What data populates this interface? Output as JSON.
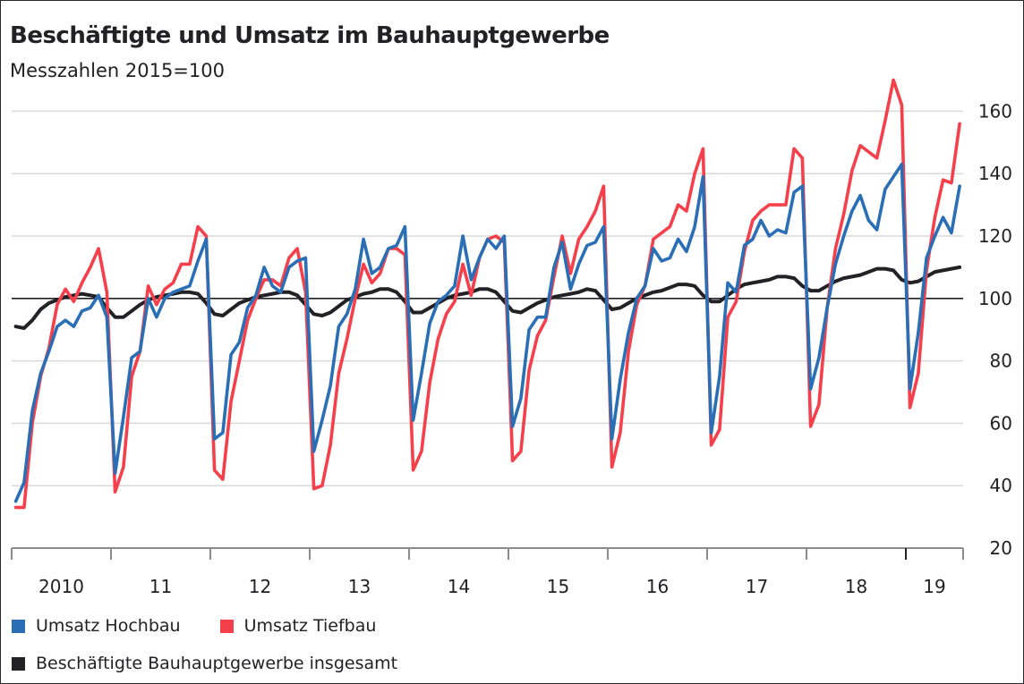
{
  "chart_data": {
    "type": "line",
    "title": "Beschäftigte und Umsatz im Bauhauptgewerbe",
    "subtitle": "Messzahlen 2015=100",
    "xlabel": "",
    "ylabel": "",
    "frequency": "monthly",
    "x_start": "2010-01",
    "x_end": "2019-07",
    "x_tick_labels": [
      "2010",
      "11",
      "12",
      "13",
      "14",
      "15",
      "16",
      "17",
      "18",
      "19"
    ],
    "y_ticks": [
      20,
      40,
      60,
      80,
      100,
      120,
      140,
      160
    ],
    "ylim": [
      20,
      170
    ],
    "reference_line": 100,
    "grid": true,
    "y_axis_position": "right",
    "legend_position": "bottom-left",
    "series": [
      {
        "name": "Umsatz Hochbau",
        "color": "#2a6fb5",
        "values": [
          35,
          41,
          64,
          76,
          83,
          91,
          93,
          91,
          96,
          97,
          101,
          94,
          44,
          62,
          81,
          83,
          100,
          94,
          100,
          102,
          103,
          104,
          112,
          119,
          55,
          57,
          82,
          86,
          97,
          101,
          110,
          104,
          102,
          110,
          112,
          113,
          51,
          61,
          72,
          91,
          95,
          103,
          119,
          108,
          110,
          116,
          117,
          123,
          61,
          76,
          92,
          99,
          101,
          104,
          120,
          106,
          113,
          119,
          116,
          120,
          59,
          68,
          90,
          94,
          94,
          110,
          118,
          103,
          111,
          117,
          118,
          123,
          55,
          74,
          89,
          100,
          104,
          116,
          112,
          113,
          119,
          115,
          123,
          139,
          57,
          75,
          105,
          102,
          117,
          119,
          125,
          120,
          122,
          121,
          134,
          136,
          71,
          81,
          97,
          111,
          120,
          128,
          133,
          125,
          122,
          135,
          139,
          143,
          71,
          89,
          113,
          120,
          126,
          121,
          136
        ]
      },
      {
        "name": "Umsatz Tiefbau",
        "color": "#f5404c",
        "values": [
          33,
          33,
          60,
          75,
          84,
          98,
          103,
          99,
          105,
          110,
          116,
          102,
          38,
          46,
          75,
          83,
          104,
          98,
          103,
          105,
          111,
          111,
          123,
          120,
          45,
          42,
          67,
          80,
          93,
          100,
          106,
          106,
          104,
          113,
          116,
          102,
          39,
          40,
          53,
          76,
          87,
          100,
          111,
          105,
          108,
          116,
          116,
          114,
          45,
          51,
          73,
          87,
          95,
          99,
          111,
          101,
          113,
          119,
          120,
          118,
          48,
          51,
          77,
          88,
          93,
          107,
          120,
          108,
          119,
          123,
          128,
          136,
          46,
          57,
          83,
          98,
          104,
          119,
          121,
          123,
          130,
          128,
          140,
          148,
          53,
          58,
          94,
          99,
          115,
          125,
          128,
          130,
          130,
          130,
          148,
          145,
          59,
          66,
          97,
          116,
          127,
          141,
          149,
          147,
          145,
          157,
          170,
          162,
          65,
          76,
          109,
          126,
          138,
          137,
          156
        ]
      },
      {
        "name": "Beschäftigte Bauhauptgewerbe insgesamt",
        "color": "#222226",
        "values": [
          91,
          90.5,
          93,
          96.5,
          98.5,
          99.5,
          100.5,
          101,
          101.5,
          101,
          100.5,
          97,
          94,
          94,
          96,
          98,
          99.5,
          100.5,
          101,
          101.5,
          102,
          102,
          101.5,
          98.5,
          95,
          94.5,
          96.5,
          98.5,
          99.5,
          100.5,
          101,
          101.5,
          102,
          102,
          101,
          98,
          95,
          94.5,
          95.5,
          97.5,
          99.5,
          100.5,
          101.5,
          102,
          103,
          103,
          102,
          99,
          95.5,
          95.5,
          97,
          98.5,
          100,
          101,
          101.5,
          102,
          103,
          103,
          102,
          99,
          96,
          95.5,
          97,
          98.5,
          99.5,
          100.5,
          101,
          101.5,
          102,
          103,
          102.5,
          99.5,
          96.5,
          97,
          98.5,
          100,
          101,
          102,
          102.5,
          103.5,
          104.5,
          104.5,
          104,
          101,
          99,
          99,
          101,
          103,
          104.5,
          105,
          105.5,
          106,
          107,
          107,
          106.5,
          104,
          102.5,
          102.5,
          104,
          105.5,
          106.5,
          107,
          107.5,
          108.5,
          109.5,
          109.5,
          109,
          106,
          105,
          105.5,
          107,
          108.5,
          109,
          109.5,
          110
        ]
      }
    ]
  }
}
